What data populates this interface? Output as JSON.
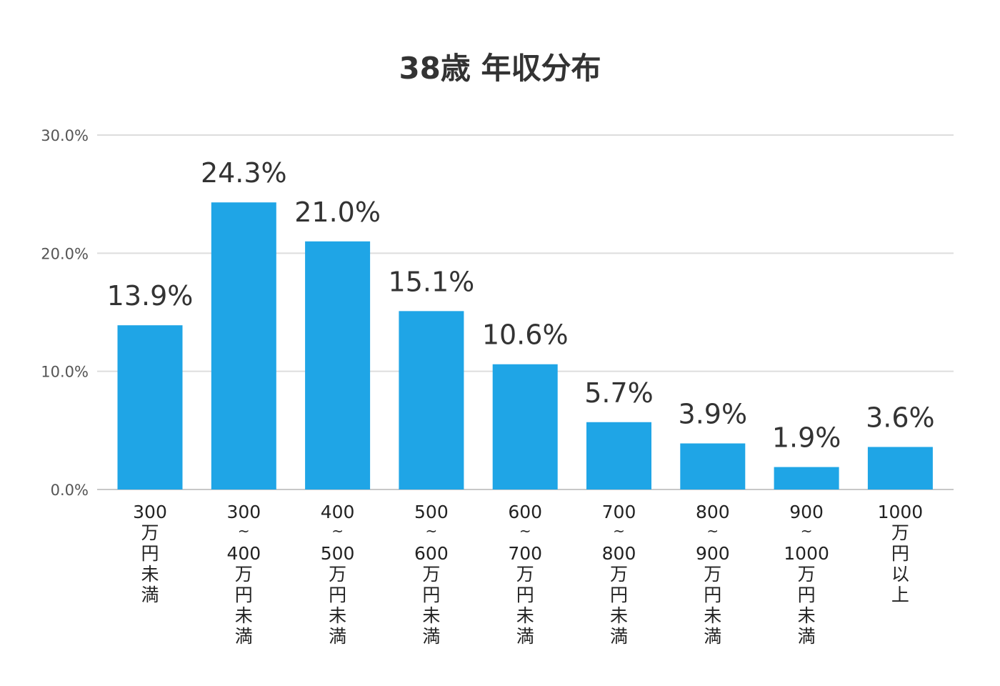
{
  "chart_data": {
    "type": "bar",
    "title": "38歳 年収分布",
    "xlabel": "",
    "ylabel": "",
    "ylim": [
      0,
      30
    ],
    "y_ticks": [
      "0.0%",
      "10.0%",
      "20.0%",
      "30.0%"
    ],
    "y_tick_values": [
      0,
      10,
      20,
      30
    ],
    "grid": true,
    "bar_color": "#1fa5e6",
    "categories": [
      [
        "300",
        "万",
        "円",
        "未",
        "満"
      ],
      [
        "300",
        "~",
        "400",
        "万",
        "円",
        "未",
        "満"
      ],
      [
        "400",
        "~",
        "500",
        "万",
        "円",
        "未",
        "満"
      ],
      [
        "500",
        "~",
        "600",
        "万",
        "円",
        "未",
        "満"
      ],
      [
        "600",
        "~",
        "700",
        "万",
        "円",
        "未",
        "満"
      ],
      [
        "700",
        "~",
        "800",
        "万",
        "円",
        "未",
        "満"
      ],
      [
        "800",
        "~",
        "900",
        "万",
        "円",
        "未",
        "満"
      ],
      [
        "900",
        "~",
        "1000",
        "万",
        "円",
        "未",
        "満"
      ],
      [
        "1000",
        "万",
        "円",
        "以",
        "上"
      ]
    ],
    "values": [
      13.9,
      24.3,
      21.0,
      15.1,
      10.6,
      5.7,
      3.9,
      1.9,
      3.6
    ],
    "data_labels": [
      "13.9%",
      "24.3%",
      "21.0%",
      "15.1%",
      "10.6%",
      "5.7%",
      "3.9%",
      "1.9%",
      "3.6%"
    ]
  }
}
